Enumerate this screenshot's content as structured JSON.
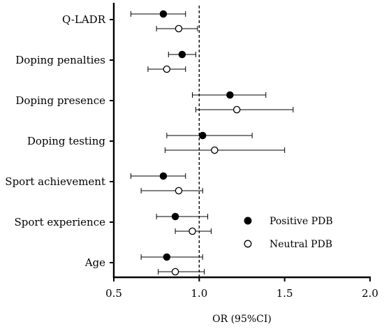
{
  "chart_data": {
    "type": "scatter",
    "subtype": "forest-plot",
    "title": "",
    "xlabel": "OR (95%CI)",
    "ylabel": "",
    "xlim": [
      0.5,
      2.0
    ],
    "xticks": [
      0.5,
      1.0,
      1.5,
      2.0
    ],
    "xtick_labels": [
      "0.5",
      "1.0",
      "1.5",
      "2.0"
    ],
    "reference_line": 1.0,
    "grid": false,
    "legend_position": "bottom-right",
    "categories": [
      "Q-LADR",
      "Doping penalties",
      "Doping presence",
      "Doping testing",
      "Sport achievement",
      "Sport experience",
      "Age"
    ],
    "series": [
      {
        "name": "Positive PDB",
        "marker": "filled-circle",
        "color": "#000000",
        "points": [
          {
            "category": "Q-LADR",
            "or": 0.79,
            "lower": 0.6,
            "upper": 0.92
          },
          {
            "category": "Doping penalties",
            "or": 0.9,
            "lower": 0.82,
            "upper": 0.98
          },
          {
            "category": "Doping presence",
            "or": 1.18,
            "lower": 0.96,
            "upper": 1.39
          },
          {
            "category": "Doping testing",
            "or": 1.02,
            "lower": 0.81,
            "upper": 1.31
          },
          {
            "category": "Sport achievement",
            "or": 0.79,
            "lower": 0.6,
            "upper": 0.92
          },
          {
            "category": "Sport experience",
            "or": 0.86,
            "lower": 0.75,
            "upper": 1.05
          },
          {
            "category": "Age",
            "or": 0.81,
            "lower": 0.66,
            "upper": 1.02
          }
        ]
      },
      {
        "name": "Neutral PDB",
        "marker": "open-circle",
        "color": "#000000",
        "points": [
          {
            "category": "Q-LADR",
            "or": 0.88,
            "lower": 0.75,
            "upper": 0.99
          },
          {
            "category": "Doping penalties",
            "or": 0.81,
            "lower": 0.7,
            "upper": 0.92
          },
          {
            "category": "Doping presence",
            "or": 1.22,
            "lower": 0.98,
            "upper": 1.55
          },
          {
            "category": "Doping testing",
            "or": 1.09,
            "lower": 0.8,
            "upper": 1.5
          },
          {
            "category": "Sport achievement",
            "or": 0.88,
            "lower": 0.66,
            "upper": 1.02
          },
          {
            "category": "Sport experience",
            "or": 0.96,
            "lower": 0.86,
            "upper": 1.07
          },
          {
            "category": "Age",
            "or": 0.86,
            "lower": 0.76,
            "upper": 1.03
          }
        ]
      }
    ]
  }
}
